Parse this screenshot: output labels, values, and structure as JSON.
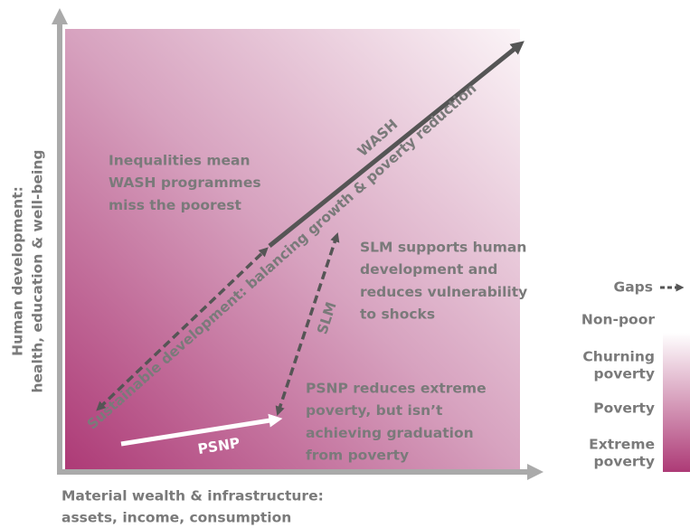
{
  "axes": {
    "y_label": [
      "Human development:",
      "health, education & well-being"
    ],
    "x_label": [
      "Material wealth & infrastructure:",
      "assets, income, consumption"
    ]
  },
  "arrows": {
    "main": "Sustainable development: balancing growth & poverty reduction",
    "wash": "WASH",
    "slm": "SLM",
    "psnp": "PSNP"
  },
  "notes": {
    "wash": [
      "Inequalities mean",
      "WASH programmes",
      "miss the poorest"
    ],
    "slm": [
      "SLM supports human",
      "development and",
      "reduces vulnerability",
      "to shocks"
    ],
    "psnp": [
      "PSNP reduces extreme",
      "poverty, but isn’t",
      "achieving graduation",
      "from poverty"
    ]
  },
  "legend": {
    "gaps": "Gaps",
    "levels": [
      [
        "Non-poor"
      ],
      [
        "Churning",
        "poverty"
      ],
      [
        "Poverty"
      ],
      [
        "Extreme",
        "poverty"
      ]
    ]
  }
}
